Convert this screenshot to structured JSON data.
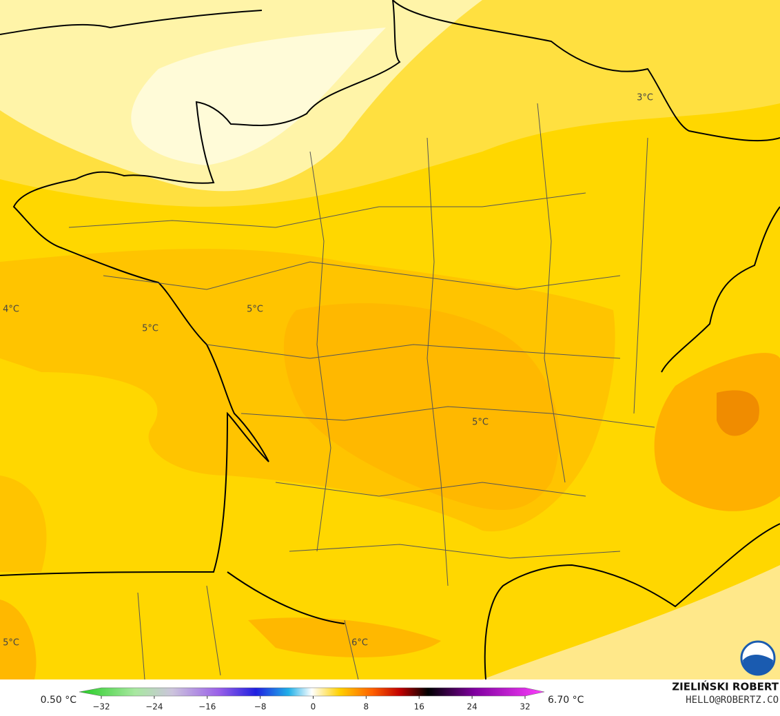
{
  "map": {
    "contour_labels": [
      "3°C",
      "4°C",
      "5°C",
      "5°C",
      "5°C",
      "5°C",
      "6°C"
    ],
    "colorbar": {
      "min_label": "0.50 °C",
      "max_label": "6.70 °C",
      "lim": [
        -32,
        32
      ],
      "ticks": [
        {
          "value": -32,
          "label": "−32"
        },
        {
          "value": -24,
          "label": "−24"
        },
        {
          "value": -16,
          "label": "−16"
        },
        {
          "value": -8,
          "label": "−8"
        },
        0,
        8,
        16,
        24,
        32
      ]
    },
    "credit": {
      "name": "ZIELIŃSKI ROBERT",
      "email": "HELLO@ROBERTZ.CO"
    }
  }
}
